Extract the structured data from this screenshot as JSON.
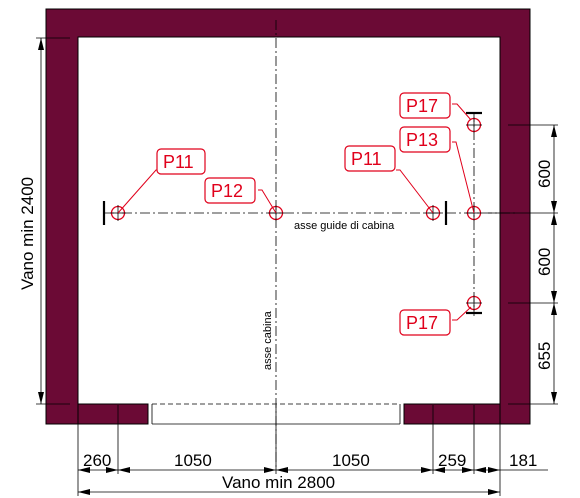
{
  "colors": {
    "wall": "#6b0a35",
    "tag": "#e0001b"
  },
  "labels": {
    "axis_guides": "asse guide di cabina",
    "axis_car": "asse cabina",
    "shaft_height": "Vano min 2400",
    "shaft_width": "Vano min 2800"
  },
  "tags": {
    "p11_left": "P11",
    "p12": "P12",
    "p11_right": "P11",
    "p13": "P13",
    "p17_top": "P17",
    "p17_bottom": "P17"
  },
  "dimensions": {
    "bottom": [
      "260",
      "1050",
      "1050",
      "259",
      "181"
    ],
    "right": [
      "600",
      "600",
      "655"
    ]
  }
}
